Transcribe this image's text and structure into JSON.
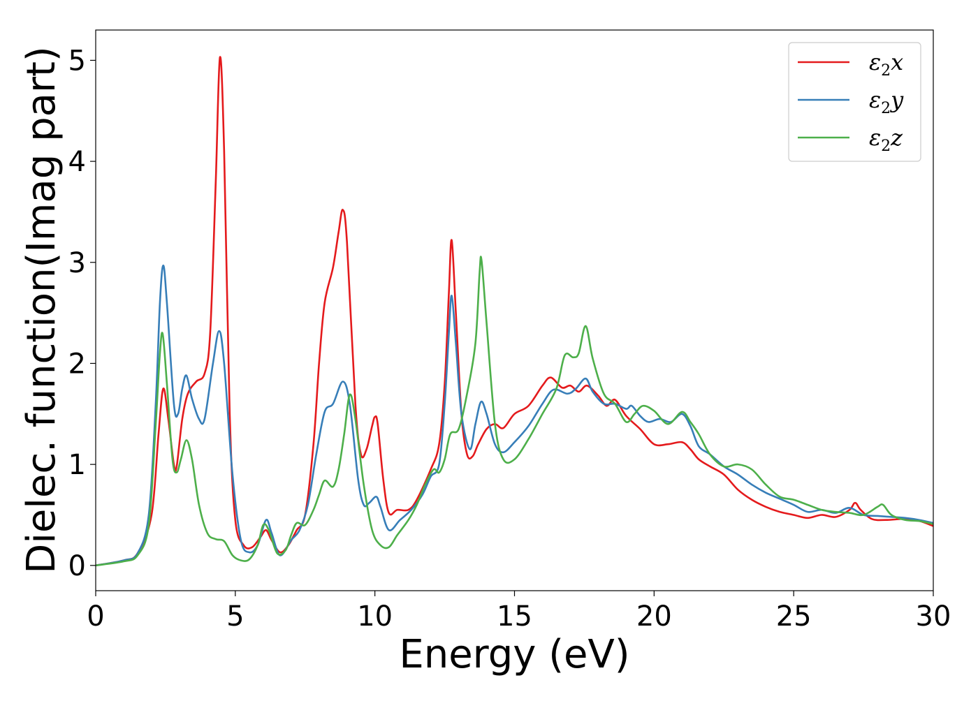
{
  "chart_data": {
    "type": "line",
    "title": "",
    "xlabel": "Energy (eV)",
    "ylabel": "Dielec. function(Imag part)",
    "xlim": [
      0,
      30
    ],
    "ylim": [
      -0.25,
      5.3
    ],
    "x_ticks": [
      0,
      5,
      10,
      15,
      20,
      25,
      30
    ],
    "y_ticks": [
      0,
      1,
      2,
      3,
      4,
      5
    ],
    "x_tick_labels": [
      "0",
      "5",
      "10",
      "15",
      "20",
      "25",
      "30"
    ],
    "y_tick_labels": [
      "0",
      "1",
      "2",
      "3",
      "4",
      "5"
    ],
    "grid": false,
    "legend_position": "top-right",
    "series": [
      {
        "name": "ε2x",
        "legend_main": "ε",
        "legend_sub": "2",
        "legend_tail": "x",
        "color": "#e41a1c",
        "points": [
          [
            0,
            0
          ],
          [
            1,
            0.05
          ],
          [
            1.5,
            0.12
          ],
          [
            2.0,
            0.5
          ],
          [
            2.25,
            1.3
          ],
          [
            2.42,
            1.75
          ],
          [
            2.6,
            1.45
          ],
          [
            2.8,
            1.0
          ],
          [
            2.9,
            0.98
          ],
          [
            3.1,
            1.45
          ],
          [
            3.3,
            1.7
          ],
          [
            3.6,
            1.82
          ],
          [
            3.9,
            1.9
          ],
          [
            4.1,
            2.3
          ],
          [
            4.3,
            3.8
          ],
          [
            4.45,
            5.03
          ],
          [
            4.6,
            4.1
          ],
          [
            4.8,
            1.5
          ],
          [
            5.0,
            0.45
          ],
          [
            5.3,
            0.2
          ],
          [
            5.6,
            0.18
          ],
          [
            5.9,
            0.28
          ],
          [
            6.1,
            0.35
          ],
          [
            6.3,
            0.25
          ],
          [
            6.6,
            0.13
          ],
          [
            6.9,
            0.2
          ],
          [
            7.2,
            0.35
          ],
          [
            7.5,
            0.5
          ],
          [
            7.8,
            1.2
          ],
          [
            8.0,
            2.0
          ],
          [
            8.2,
            2.6
          ],
          [
            8.5,
            2.95
          ],
          [
            8.7,
            3.3
          ],
          [
            8.85,
            3.52
          ],
          [
            9.0,
            3.2
          ],
          [
            9.3,
            1.6
          ],
          [
            9.5,
            1.1
          ],
          [
            9.7,
            1.15
          ],
          [
            9.9,
            1.38
          ],
          [
            10.0,
            1.47
          ],
          [
            10.1,
            1.4
          ],
          [
            10.3,
            0.85
          ],
          [
            10.5,
            0.52
          ],
          [
            10.8,
            0.55
          ],
          [
            11.2,
            0.55
          ],
          [
            11.5,
            0.65
          ],
          [
            12.0,
            0.95
          ],
          [
            12.3,
            1.2
          ],
          [
            12.5,
            1.8
          ],
          [
            12.65,
            2.7
          ],
          [
            12.75,
            3.22
          ],
          [
            12.9,
            2.5
          ],
          [
            13.1,
            1.5
          ],
          [
            13.3,
            1.1
          ],
          [
            13.5,
            1.08
          ],
          [
            13.7,
            1.2
          ],
          [
            14.0,
            1.35
          ],
          [
            14.3,
            1.4
          ],
          [
            14.6,
            1.36
          ],
          [
            15.0,
            1.5
          ],
          [
            15.5,
            1.58
          ],
          [
            16.0,
            1.78
          ],
          [
            16.3,
            1.86
          ],
          [
            16.7,
            1.76
          ],
          [
            17.0,
            1.78
          ],
          [
            17.3,
            1.72
          ],
          [
            17.6,
            1.78
          ],
          [
            18.0,
            1.68
          ],
          [
            18.3,
            1.58
          ],
          [
            18.6,
            1.64
          ],
          [
            19.0,
            1.48
          ],
          [
            19.5,
            1.35
          ],
          [
            20.0,
            1.2
          ],
          [
            20.5,
            1.2
          ],
          [
            21.0,
            1.22
          ],
          [
            21.3,
            1.15
          ],
          [
            21.6,
            1.05
          ],
          [
            22.0,
            0.98
          ],
          [
            22.5,
            0.9
          ],
          [
            23.0,
            0.75
          ],
          [
            23.5,
            0.65
          ],
          [
            24.0,
            0.58
          ],
          [
            24.5,
            0.53
          ],
          [
            25.0,
            0.5
          ],
          [
            25.5,
            0.47
          ],
          [
            26.0,
            0.5
          ],
          [
            26.5,
            0.48
          ],
          [
            27.0,
            0.55
          ],
          [
            27.2,
            0.62
          ],
          [
            27.4,
            0.55
          ],
          [
            27.8,
            0.46
          ],
          [
            28.3,
            0.45
          ],
          [
            29.0,
            0.46
          ],
          [
            29.5,
            0.44
          ],
          [
            30,
            0.39
          ]
        ]
      },
      {
        "name": "ε2y",
        "legend_main": "ε",
        "legend_sub": "2",
        "legend_tail": "y",
        "color": "#377eb8",
        "points": [
          [
            0,
            0
          ],
          [
            1,
            0.05
          ],
          [
            1.5,
            0.12
          ],
          [
            1.9,
            0.5
          ],
          [
            2.15,
            1.6
          ],
          [
            2.3,
            2.6
          ],
          [
            2.42,
            2.97
          ],
          [
            2.55,
            2.6
          ],
          [
            2.8,
            1.6
          ],
          [
            2.95,
            1.5
          ],
          [
            3.1,
            1.75
          ],
          [
            3.25,
            1.88
          ],
          [
            3.45,
            1.65
          ],
          [
            3.7,
            1.45
          ],
          [
            3.9,
            1.45
          ],
          [
            4.2,
            2.0
          ],
          [
            4.42,
            2.32
          ],
          [
            4.6,
            2.0
          ],
          [
            4.9,
            0.9
          ],
          [
            5.2,
            0.25
          ],
          [
            5.5,
            0.13
          ],
          [
            5.8,
            0.2
          ],
          [
            6.1,
            0.45
          ],
          [
            6.3,
            0.32
          ],
          [
            6.6,
            0.1
          ],
          [
            7.0,
            0.25
          ],
          [
            7.3,
            0.35
          ],
          [
            7.6,
            0.6
          ],
          [
            7.9,
            1.1
          ],
          [
            8.2,
            1.52
          ],
          [
            8.5,
            1.6
          ],
          [
            8.85,
            1.82
          ],
          [
            9.1,
            1.6
          ],
          [
            9.4,
            0.85
          ],
          [
            9.6,
            0.6
          ],
          [
            9.8,
            0.62
          ],
          [
            10.05,
            0.68
          ],
          [
            10.2,
            0.58
          ],
          [
            10.5,
            0.35
          ],
          [
            10.9,
            0.45
          ],
          [
            11.3,
            0.55
          ],
          [
            11.7,
            0.7
          ],
          [
            12.0,
            0.88
          ],
          [
            12.3,
            1.0
          ],
          [
            12.5,
            1.6
          ],
          [
            12.65,
            2.3
          ],
          [
            12.75,
            2.67
          ],
          [
            12.9,
            2.2
          ],
          [
            13.1,
            1.5
          ],
          [
            13.4,
            1.15
          ],
          [
            13.6,
            1.4
          ],
          [
            13.8,
            1.62
          ],
          [
            14.0,
            1.5
          ],
          [
            14.3,
            1.2
          ],
          [
            14.6,
            1.12
          ],
          [
            15.0,
            1.22
          ],
          [
            15.5,
            1.38
          ],
          [
            16.0,
            1.6
          ],
          [
            16.4,
            1.74
          ],
          [
            16.9,
            1.7
          ],
          [
            17.2,
            1.75
          ],
          [
            17.55,
            1.85
          ],
          [
            17.8,
            1.72
          ],
          [
            18.2,
            1.6
          ],
          [
            18.6,
            1.6
          ],
          [
            19.0,
            1.55
          ],
          [
            19.2,
            1.58
          ],
          [
            19.5,
            1.48
          ],
          [
            19.8,
            1.42
          ],
          [
            20.2,
            1.45
          ],
          [
            20.6,
            1.42
          ],
          [
            21.0,
            1.5
          ],
          [
            21.3,
            1.38
          ],
          [
            21.6,
            1.18
          ],
          [
            22.0,
            1.1
          ],
          [
            22.5,
            0.98
          ],
          [
            23.0,
            0.9
          ],
          [
            23.5,
            0.8
          ],
          [
            24.0,
            0.72
          ],
          [
            24.5,
            0.66
          ],
          [
            25.0,
            0.6
          ],
          [
            25.5,
            0.53
          ],
          [
            26.0,
            0.55
          ],
          [
            26.5,
            0.52
          ],
          [
            27.0,
            0.57
          ],
          [
            27.5,
            0.5
          ],
          [
            28.0,
            0.49
          ],
          [
            28.5,
            0.48
          ],
          [
            29.0,
            0.47
          ],
          [
            29.5,
            0.45
          ],
          [
            30,
            0.42
          ]
        ]
      },
      {
        "name": "ε2z",
        "legend_main": "ε",
        "legend_sub": "2",
        "legend_tail": "z",
        "color": "#4daf4a",
        "points": [
          [
            0,
            0
          ],
          [
            1,
            0.04
          ],
          [
            1.5,
            0.1
          ],
          [
            1.9,
            0.4
          ],
          [
            2.15,
            1.4
          ],
          [
            2.3,
            2.1
          ],
          [
            2.4,
            2.29
          ],
          [
            2.55,
            1.8
          ],
          [
            2.75,
            1.05
          ],
          [
            2.9,
            0.92
          ],
          [
            3.05,
            1.05
          ],
          [
            3.25,
            1.24
          ],
          [
            3.45,
            1.05
          ],
          [
            3.7,
            0.6
          ],
          [
            4.0,
            0.32
          ],
          [
            4.3,
            0.26
          ],
          [
            4.6,
            0.24
          ],
          [
            4.9,
            0.1
          ],
          [
            5.2,
            0.05
          ],
          [
            5.5,
            0.06
          ],
          [
            5.8,
            0.2
          ],
          [
            6.0,
            0.4
          ],
          [
            6.2,
            0.35
          ],
          [
            6.5,
            0.12
          ],
          [
            6.8,
            0.15
          ],
          [
            7.0,
            0.3
          ],
          [
            7.2,
            0.42
          ],
          [
            7.5,
            0.4
          ],
          [
            7.8,
            0.55
          ],
          [
            8.0,
            0.7
          ],
          [
            8.2,
            0.84
          ],
          [
            8.5,
            0.78
          ],
          [
            8.7,
            0.95
          ],
          [
            8.9,
            1.3
          ],
          [
            9.1,
            1.69
          ],
          [
            9.3,
            1.45
          ],
          [
            9.6,
            0.8
          ],
          [
            9.9,
            0.35
          ],
          [
            10.2,
            0.2
          ],
          [
            10.5,
            0.18
          ],
          [
            10.8,
            0.3
          ],
          [
            11.2,
            0.45
          ],
          [
            11.5,
            0.6
          ],
          [
            11.8,
            0.8
          ],
          [
            12.1,
            0.95
          ],
          [
            12.3,
            0.92
          ],
          [
            12.5,
            1.05
          ],
          [
            12.7,
            1.3
          ],
          [
            13.0,
            1.35
          ],
          [
            13.3,
            1.7
          ],
          [
            13.6,
            2.2
          ],
          [
            13.75,
            2.9
          ],
          [
            13.82,
            3.02
          ],
          [
            14.0,
            2.4
          ],
          [
            14.3,
            1.4
          ],
          [
            14.6,
            1.05
          ],
          [
            15.0,
            1.05
          ],
          [
            15.5,
            1.25
          ],
          [
            16.0,
            1.5
          ],
          [
            16.5,
            1.75
          ],
          [
            16.8,
            2.08
          ],
          [
            17.1,
            2.06
          ],
          [
            17.3,
            2.1
          ],
          [
            17.55,
            2.37
          ],
          [
            17.8,
            2.05
          ],
          [
            18.2,
            1.7
          ],
          [
            18.6,
            1.6
          ],
          [
            19.0,
            1.42
          ],
          [
            19.3,
            1.5
          ],
          [
            19.6,
            1.58
          ],
          [
            20.0,
            1.53
          ],
          [
            20.5,
            1.4
          ],
          [
            21.0,
            1.52
          ],
          [
            21.3,
            1.42
          ],
          [
            21.6,
            1.3
          ],
          [
            22.0,
            1.1
          ],
          [
            22.5,
            0.98
          ],
          [
            23.0,
            1.0
          ],
          [
            23.5,
            0.95
          ],
          [
            24.0,
            0.8
          ],
          [
            24.5,
            0.68
          ],
          [
            25.0,
            0.65
          ],
          [
            25.5,
            0.6
          ],
          [
            26.0,
            0.55
          ],
          [
            26.5,
            0.53
          ],
          [
            27.0,
            0.52
          ],
          [
            27.5,
            0.5
          ],
          [
            28.0,
            0.58
          ],
          [
            28.2,
            0.6
          ],
          [
            28.5,
            0.5
          ],
          [
            29.0,
            0.45
          ],
          [
            29.5,
            0.44
          ],
          [
            30,
            0.41
          ]
        ]
      }
    ]
  }
}
